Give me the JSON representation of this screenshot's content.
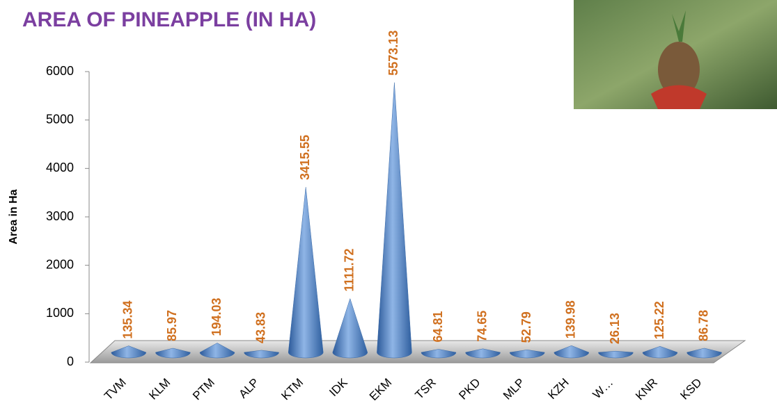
{
  "chart_data": {
    "type": "cone",
    "title": "AREA OF PINEAPPLE (IN HA)",
    "y_label": "Area in Ha",
    "categories": [
      "TVM",
      "KLM",
      "PTM",
      "ALP",
      "KTM",
      "IDK",
      "EKM",
      "TSR",
      "PKD",
      "MLP",
      "KZH",
      "W…",
      "KNR",
      "KSD"
    ],
    "values": [
      135.34,
      85.97,
      194.03,
      43.83,
      3415.55,
      1111.72,
      5573.13,
      64.81,
      74.65,
      52.79,
      139.98,
      26.13,
      125.22,
      86.78
    ],
    "color": "#4f81bd",
    "label_color": "#d0701f",
    "ylim": [
      0,
      6000
    ],
    "yticks": [
      0,
      1000,
      2000,
      3000,
      4000,
      5000,
      6000
    ]
  }
}
